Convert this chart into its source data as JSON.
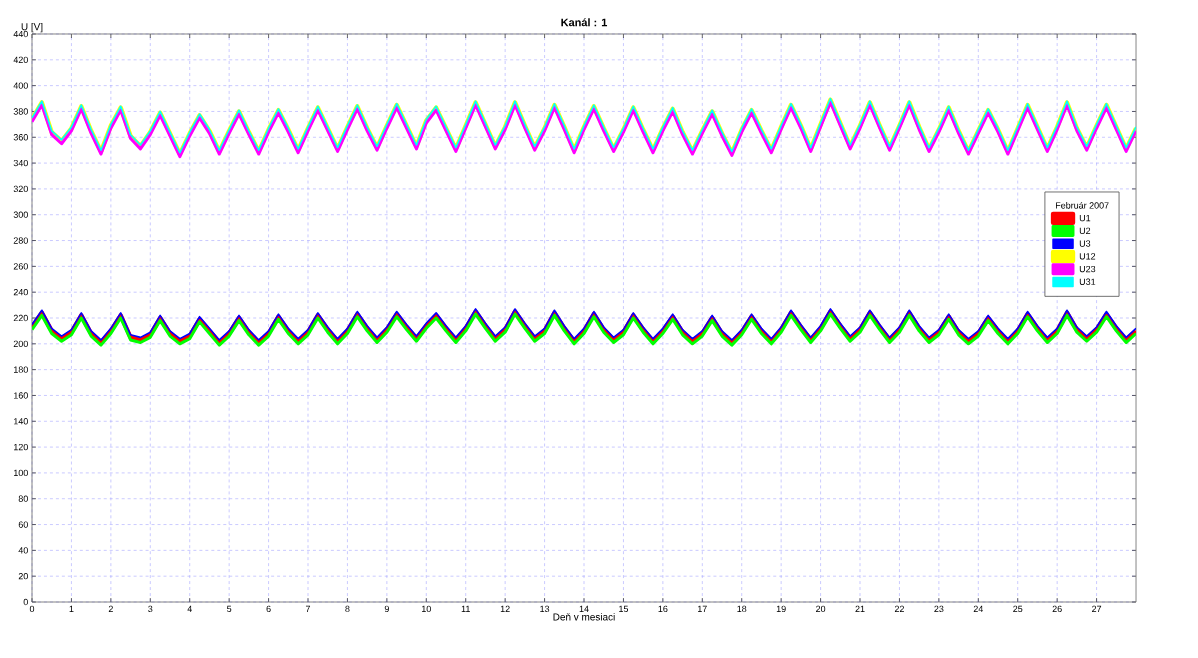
{
  "chart_data": {
    "type": "line",
    "title": "Kanál : 1",
    "ylabel": "U [V]",
    "xlabel": "Deň v mesiaci",
    "legend_title": "Február 2007",
    "x": [
      0,
      0.25,
      0.5,
      0.75,
      1,
      1.25,
      1.5,
      1.75,
      2,
      2.25,
      2.5,
      2.75,
      3,
      3.25,
      3.5,
      3.75,
      4,
      4.25,
      4.5,
      4.75,
      5,
      5.25,
      5.5,
      5.75,
      6,
      6.25,
      6.5,
      6.75,
      7,
      7.25,
      7.5,
      7.75,
      8,
      8.25,
      8.5,
      8.75,
      9,
      9.25,
      9.5,
      9.75,
      10,
      10.25,
      10.5,
      10.75,
      11,
      11.25,
      11.5,
      11.75,
      12,
      12.25,
      12.5,
      12.75,
      13,
      13.25,
      13.5,
      13.75,
      14,
      14.25,
      14.5,
      14.75,
      15,
      15.25,
      15.5,
      15.75,
      16,
      16.25,
      16.5,
      16.75,
      17,
      17.25,
      17.5,
      17.75,
      18,
      18.25,
      18.5,
      18.75,
      19,
      19.25,
      19.5,
      19.75,
      20,
      20.25,
      20.5,
      20.75,
      21,
      21.25,
      21.5,
      21.75,
      22,
      22.25,
      22.5,
      22.75,
      23,
      23.25,
      23.5,
      23.75,
      24,
      24.25,
      24.5,
      24.75,
      25,
      25.25,
      25.5,
      25.75,
      26,
      26.25,
      26.5,
      26.75,
      27,
      27.25,
      27.5,
      27.75,
      28
    ],
    "series": [
      {
        "name": "U1",
        "color": "#ff0000",
        "values": [
          213,
          224,
          210,
          204,
          209,
          222,
          208,
          201,
          210,
          222,
          205,
          203,
          207,
          220,
          208,
          202,
          206,
          219,
          210,
          201,
          208,
          220,
          209,
          201,
          208,
          221,
          210,
          202,
          209,
          222,
          211,
          202,
          210,
          223,
          212,
          203,
          211,
          223,
          213,
          204,
          214,
          222,
          212,
          203,
          212,
          225,
          214,
          204,
          211,
          225,
          214,
          204,
          210,
          224,
          212,
          202,
          210,
          223,
          211,
          203,
          209,
          222,
          211,
          202,
          210,
          221,
          209,
          202,
          208,
          220,
          208,
          201,
          209,
          221,
          210,
          202,
          211,
          224,
          213,
          203,
          212,
          225,
          214,
          204,
          211,
          224,
          213,
          203,
          211,
          224,
          212,
          203,
          209,
          221,
          209,
          202,
          208,
          220,
          210,
          202,
          210,
          223,
          212,
          203,
          210,
          224,
          211,
          204,
          211,
          223,
          212,
          203,
          210
        ]
      },
      {
        "name": "U2",
        "color": "#00ff00",
        "values": [
          211,
          222,
          208,
          202,
          207,
          220,
          206,
          199,
          208,
          220,
          203,
          201,
          205,
          218,
          206,
          200,
          204,
          217,
          208,
          199,
          206,
          218,
          207,
          199,
          206,
          219,
          208,
          200,
          207,
          220,
          209,
          200,
          208,
          221,
          210,
          201,
          209,
          221,
          211,
          202,
          212,
          220,
          210,
          201,
          210,
          223,
          212,
          202,
          209,
          223,
          212,
          202,
          208,
          222,
          210,
          200,
          208,
          221,
          209,
          201,
          207,
          220,
          209,
          200,
          208,
          219,
          207,
          200,
          206,
          218,
          206,
          199,
          207,
          219,
          208,
          200,
          209,
          222,
          211,
          201,
          210,
          223,
          212,
          202,
          209,
          222,
          211,
          201,
          209,
          222,
          210,
          201,
          207,
          219,
          207,
          200,
          206,
          218,
          208,
          200,
          208,
          221,
          210,
          201,
          208,
          222,
          209,
          202,
          209,
          221,
          210,
          201,
          208
        ]
      },
      {
        "name": "U3",
        "color": "#0000ff",
        "values": [
          215,
          226,
          212,
          206,
          211,
          224,
          210,
          203,
          212,
          224,
          207,
          205,
          209,
          222,
          210,
          204,
          208,
          221,
          212,
          203,
          210,
          222,
          211,
          203,
          210,
          223,
          212,
          204,
          211,
          224,
          213,
          204,
          212,
          225,
          214,
          205,
          213,
          225,
          215,
          206,
          216,
          224,
          214,
          205,
          214,
          227,
          216,
          206,
          213,
          227,
          216,
          206,
          212,
          226,
          214,
          204,
          212,
          225,
          213,
          205,
          211,
          224,
          213,
          204,
          212,
          223,
          211,
          204,
          210,
          222,
          210,
          203,
          211,
          223,
          212,
          204,
          213,
          226,
          215,
          205,
          214,
          227,
          216,
          206,
          213,
          226,
          215,
          205,
          213,
          226,
          214,
          205,
          211,
          223,
          211,
          204,
          210,
          222,
          212,
          204,
          212,
          225,
          214,
          205,
          212,
          226,
          213,
          206,
          213,
          225,
          214,
          205,
          212
        ]
      },
      {
        "name": "U12",
        "color": "#ffff00",
        "values": [
          374,
          387,
          364,
          357,
          367,
          384,
          365,
          349,
          369,
          383,
          361,
          353,
          364,
          379,
          363,
          347,
          363,
          377,
          365,
          349,
          365,
          380,
          364,
          349,
          366,
          381,
          366,
          350,
          367,
          383,
          367,
          351,
          368,
          384,
          367,
          352,
          369,
          385,
          369,
          353,
          373,
          383,
          367,
          351,
          369,
          387,
          370,
          353,
          368,
          387,
          369,
          352,
          367,
          385,
          368,
          350,
          368,
          384,
          367,
          351,
          366,
          383,
          366,
          350,
          367,
          382,
          364,
          349,
          365,
          380,
          363,
          348,
          366,
          381,
          365,
          350,
          368,
          385,
          369,
          351,
          370,
          389,
          371,
          353,
          369,
          387,
          369,
          352,
          369,
          387,
          368,
          351,
          366,
          383,
          365,
          349,
          365,
          381,
          366,
          349,
          367,
          385,
          368,
          351,
          368,
          387,
          367,
          352,
          369,
          385,
          368,
          351,
          367
        ]
      },
      {
        "name": "U23",
        "color": "#ff00ff",
        "values": [
          372,
          385,
          362,
          355,
          365,
          382,
          363,
          347,
          367,
          381,
          359,
          351,
          362,
          377,
          361,
          345,
          361,
          375,
          363,
          347,
          363,
          378,
          362,
          347,
          364,
          379,
          364,
          348,
          365,
          381,
          365,
          349,
          366,
          382,
          365,
          350,
          367,
          383,
          367,
          351,
          371,
          381,
          365,
          349,
          367,
          385,
          368,
          351,
          366,
          385,
          367,
          350,
          365,
          383,
          366,
          348,
          366,
          382,
          365,
          349,
          364,
          381,
          364,
          348,
          365,
          380,
          362,
          347,
          363,
          378,
          361,
          346,
          364,
          379,
          363,
          348,
          366,
          383,
          367,
          349,
          368,
          387,
          369,
          351,
          367,
          385,
          367,
          350,
          367,
          385,
          366,
          349,
          364,
          381,
          363,
          347,
          363,
          379,
          364,
          347,
          365,
          383,
          366,
          349,
          366,
          385,
          365,
          350,
          367,
          383,
          366,
          349,
          365
        ]
      },
      {
        "name": "U31",
        "color": "#00ffff",
        "values": [
          375,
          388,
          365,
          358,
          368,
          385,
          366,
          350,
          370,
          384,
          362,
          354,
          365,
          380,
          364,
          348,
          364,
          378,
          366,
          350,
          366,
          381,
          365,
          350,
          367,
          382,
          367,
          351,
          368,
          384,
          368,
          352,
          369,
          385,
          368,
          353,
          370,
          386,
          370,
          354,
          374,
          384,
          368,
          352,
          370,
          388,
          371,
          354,
          369,
          388,
          370,
          353,
          368,
          386,
          369,
          351,
          369,
          385,
          368,
          352,
          367,
          384,
          367,
          351,
          368,
          383,
          365,
          350,
          366,
          381,
          364,
          349,
          367,
          382,
          366,
          351,
          369,
          386,
          370,
          352,
          371,
          390,
          372,
          354,
          370,
          388,
          370,
          353,
          370,
          388,
          369,
          352,
          367,
          384,
          366,
          350,
          366,
          382,
          367,
          350,
          368,
          386,
          369,
          352,
          369,
          388,
          368,
          353,
          370,
          386,
          369,
          352,
          368
        ]
      }
    ],
    "xlim": [
      0,
      28
    ],
    "xticks": [
      0,
      1,
      2,
      3,
      4,
      5,
      6,
      7,
      8,
      9,
      10,
      11,
      12,
      13,
      14,
      15,
      16,
      17,
      18,
      19,
      20,
      21,
      22,
      23,
      24,
      25,
      26,
      27
    ],
    "ylim": [
      0,
      440
    ],
    "yticks": [
      0,
      20,
      40,
      60,
      80,
      100,
      120,
      140,
      160,
      180,
      200,
      220,
      240,
      260,
      280,
      300,
      320,
      340,
      360,
      380,
      400,
      420,
      440
    ],
    "grid": true,
    "legend": "right",
    "line_style": "solid",
    "marker": "none"
  }
}
